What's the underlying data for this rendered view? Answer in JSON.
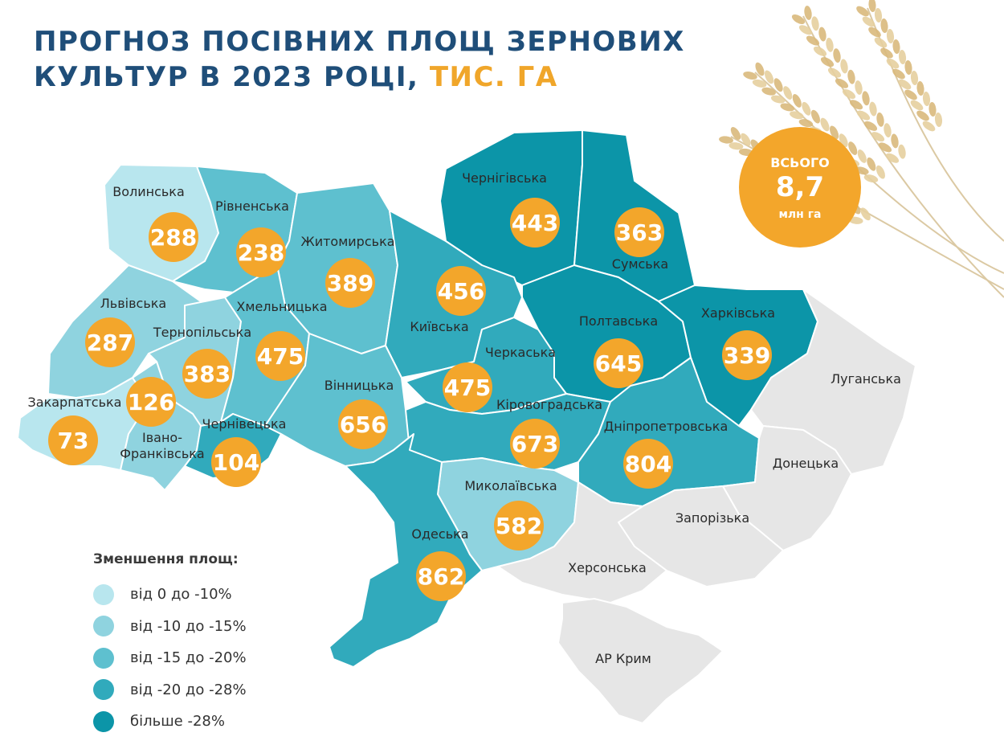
{
  "title": {
    "line1": "ПРОГНОЗ ПОСІВНИХ ПЛОЩ ЗЕРНОВИХ",
    "line2": "КУЛЬТУР В 2023 РОЦІ,",
    "unit": "ТИС. ГА"
  },
  "total": {
    "label": "ВСЬОГО",
    "value": "8,7",
    "unit": "млн га"
  },
  "colors": {
    "title": "#1f4e79",
    "accent": "#f3a62b",
    "no_data": "#e6e6e6",
    "levels": [
      "#b8e6ee",
      "#8fd3df",
      "#5ec0cf",
      "#31aabc",
      "#0c95a8"
    ]
  },
  "legend": {
    "title": "Зменшення площ:",
    "items": [
      {
        "label": "від 0 до -10%"
      },
      {
        "label": "від -10 до -15%"
      },
      {
        "label": "від -15 до -20%"
      },
      {
        "label": "від -20 до -28%"
      },
      {
        "label": "більше -28%"
      }
    ]
  },
  "regions": [
    {
      "id": "volynska",
      "name": "Волинська",
      "value": "288",
      "level": 0
    },
    {
      "id": "rivnenska",
      "name": "Рівненська",
      "value": "238",
      "level": 2
    },
    {
      "id": "zhytomyrska",
      "name": "Житомирська",
      "value": "389",
      "level": 2
    },
    {
      "id": "chernihivska",
      "name": "Чернігівська",
      "value": "443",
      "level": 4
    },
    {
      "id": "sumska",
      "name": "Сумська",
      "value": "363",
      "level": 4
    },
    {
      "id": "lvivska",
      "name": "Львівська",
      "value": "287",
      "level": 1
    },
    {
      "id": "ternopilska",
      "name": "Тернопільська",
      "value": "383",
      "level": 1
    },
    {
      "id": "khmelnytska",
      "name": "Хмельницька",
      "value": "475",
      "level": 2
    },
    {
      "id": "kyivska",
      "name": "Київська",
      "value": "456",
      "level": 3
    },
    {
      "id": "poltavska",
      "name": "Полтавська",
      "value": "645",
      "level": 4
    },
    {
      "id": "kharkivska",
      "name": "Харківська",
      "value": "339",
      "level": 4
    },
    {
      "id": "zakarpatska",
      "name": "Закарпатська",
      "value": "73",
      "level": 0
    },
    {
      "id": "ivano-frankivska",
      "name": "Івано-Франківська",
      "value": "126",
      "level": 1
    },
    {
      "id": "chernivetska",
      "name": "Чернівецька",
      "value": "104",
      "level": 3
    },
    {
      "id": "vinnytska",
      "name": "Вінницька",
      "value": "656",
      "level": 2
    },
    {
      "id": "cherkaska",
      "name": "Черкаська",
      "value": "475",
      "level": 3
    },
    {
      "id": "kirovohradska",
      "name": "Кіровоградська",
      "value": "673",
      "level": 3
    },
    {
      "id": "dnipropetrovska",
      "name": "Дніпропетровська",
      "value": "804",
      "level": 3
    },
    {
      "id": "mykolaivska",
      "name": "Миколаївська",
      "value": "582",
      "level": 1
    },
    {
      "id": "odeska",
      "name": "Одеська",
      "value": "862",
      "level": 3
    },
    {
      "id": "luhanska",
      "name": "Луганська",
      "value": null,
      "level": null
    },
    {
      "id": "donetska",
      "name": "Донецька",
      "value": null,
      "level": null
    },
    {
      "id": "zaporizka",
      "name": "Запорізька",
      "value": null,
      "level": null
    },
    {
      "id": "khersonska",
      "name": "Херсонська",
      "value": null,
      "level": null
    },
    {
      "id": "ar-krym",
      "name": "АР Крим",
      "value": null,
      "level": null
    }
  ]
}
